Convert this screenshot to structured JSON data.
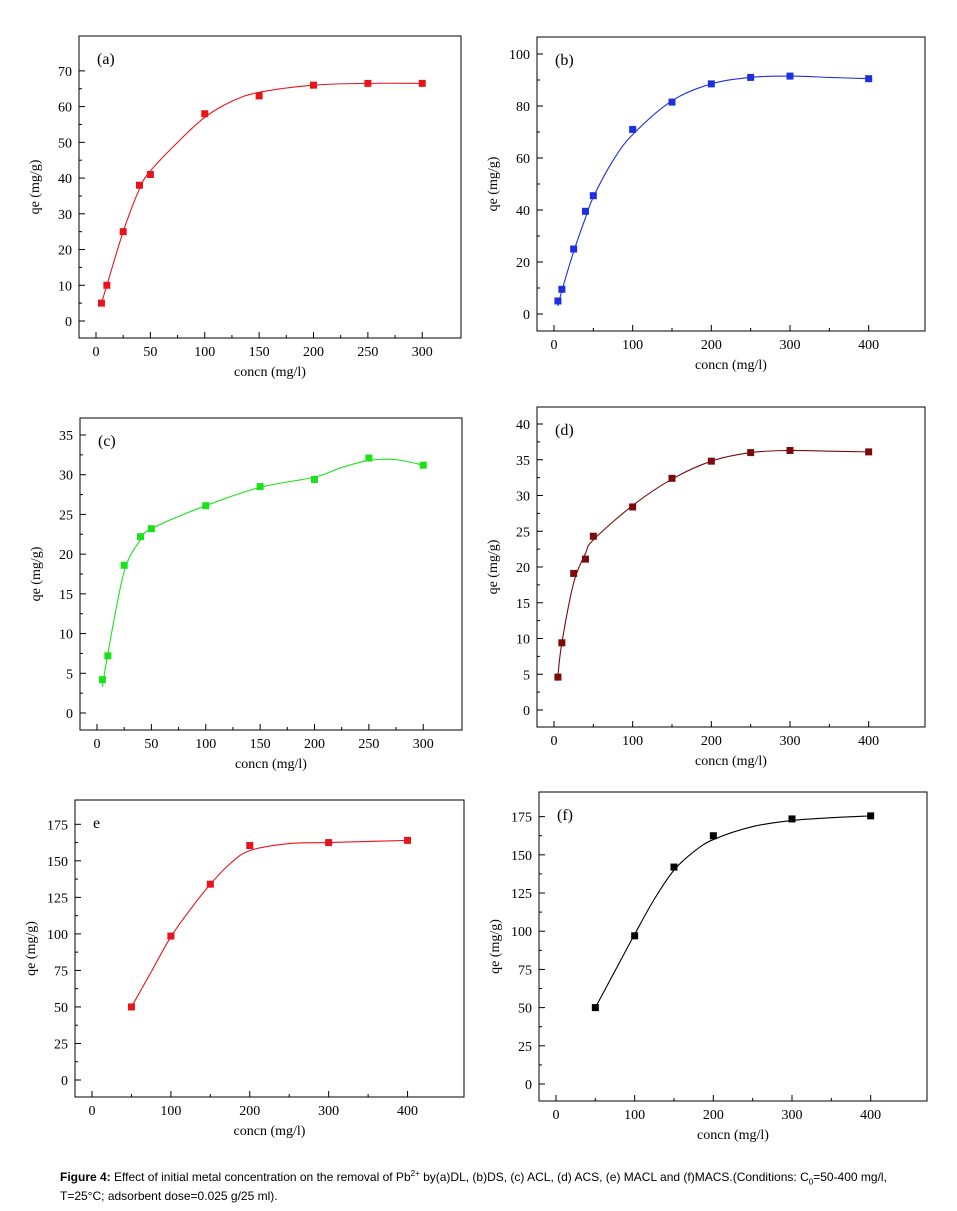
{
  "chart_data": [
    {
      "type": "scatter",
      "panel_label": "(a)",
      "xlabel": "concn (mg/l)",
      "ylabel": "qe (mg/g)",
      "xlim": [
        0,
        320
      ],
      "ylim": [
        0,
        75
      ],
      "xticks": [
        0,
        50,
        100,
        150,
        200,
        250,
        300
      ],
      "yticks": [
        0,
        10,
        20,
        30,
        40,
        50,
        60,
        70
      ],
      "color": "#e8141b",
      "points": [
        [
          5,
          5
        ],
        [
          10,
          10
        ],
        [
          25,
          25
        ],
        [
          40,
          38
        ],
        [
          50,
          41
        ],
        [
          100,
          58
        ],
        [
          150,
          63
        ],
        [
          200,
          66
        ],
        [
          250,
          66.5
        ],
        [
          300,
          66.5
        ]
      ],
      "curve": [
        [
          5,
          5
        ],
        [
          10,
          10
        ],
        [
          25,
          25
        ],
        [
          40,
          37
        ],
        [
          50,
          42
        ],
        [
          75,
          50
        ],
        [
          100,
          57
        ],
        [
          125,
          61.5
        ],
        [
          150,
          64
        ],
        [
          200,
          66
        ],
        [
          250,
          66.5
        ],
        [
          300,
          66.5
        ]
      ]
    },
    {
      "type": "scatter",
      "panel_label": "(b)",
      "xlabel": "concn (mg/l)",
      "ylabel": "qe (mg/g)",
      "xlim": [
        0,
        450
      ],
      "ylim": [
        0,
        100
      ],
      "xticks": [
        0,
        100,
        200,
        300,
        400
      ],
      "yticks": [
        0,
        20,
        40,
        60,
        80,
        100
      ],
      "color": "#1d2fe0",
      "points": [
        [
          5,
          5
        ],
        [
          10,
          9.5
        ],
        [
          25,
          25
        ],
        [
          40,
          39.5
        ],
        [
          50,
          45.5
        ],
        [
          100,
          71
        ],
        [
          150,
          81.5
        ],
        [
          200,
          88.5
        ],
        [
          250,
          91
        ],
        [
          300,
          91.5
        ],
        [
          400,
          90.5
        ]
      ],
      "curve": [
        [
          5,
          3
        ],
        [
          10,
          9
        ],
        [
          25,
          24
        ],
        [
          40,
          37
        ],
        [
          50,
          45
        ],
        [
          75,
          59
        ],
        [
          100,
          69
        ],
        [
          150,
          82
        ],
        [
          200,
          88.5
        ],
        [
          250,
          91
        ],
        [
          300,
          91.5
        ],
        [
          350,
          91
        ],
        [
          400,
          90.5
        ]
      ]
    },
    {
      "type": "scatter",
      "panel_label": "(c)",
      "xlabel": "concn (mg/l)",
      "ylabel": "qe (mg/g)",
      "xlim": [
        0,
        320
      ],
      "ylim": [
        0,
        35
      ],
      "xticks": [
        0,
        50,
        100,
        150,
        200,
        250,
        300
      ],
      "yticks": [
        0,
        5,
        10,
        15,
        20,
        25,
        30,
        35
      ],
      "color": "#19e21a",
      "points": [
        [
          5,
          4.2
        ],
        [
          10,
          7.2
        ],
        [
          25,
          18.6
        ],
        [
          40,
          22.2
        ],
        [
          50,
          23.2
        ],
        [
          100,
          26.1
        ],
        [
          150,
          28.5
        ],
        [
          200,
          29.4
        ],
        [
          250,
          32.1
        ],
        [
          300,
          31.2
        ]
      ],
      "curve": [
        [
          5,
          3.3
        ],
        [
          10,
          7.5
        ],
        [
          25,
          17.8
        ],
        [
          40,
          21.8
        ],
        [
          50,
          23.2
        ],
        [
          100,
          26.1
        ],
        [
          150,
          28.4
        ],
        [
          200,
          29.7
        ],
        [
          225,
          30.9
        ],
        [
          250,
          31.8
        ],
        [
          275,
          31.9
        ],
        [
          300,
          31.2
        ]
      ]
    },
    {
      "type": "scatter",
      "panel_label": "(d)",
      "xlabel": "concn (mg/l)",
      "ylabel": "qe (mg/g)",
      "xlim": [
        0,
        450
      ],
      "ylim": [
        0,
        40
      ],
      "xticks": [
        0,
        100,
        200,
        300,
        400
      ],
      "yticks": [
        0,
        5,
        10,
        15,
        20,
        25,
        30,
        35,
        40
      ],
      "color": "#7b0a0a",
      "points": [
        [
          5,
          4.6
        ],
        [
          10,
          9.4
        ],
        [
          25,
          19.1
        ],
        [
          40,
          21.1
        ],
        [
          50,
          24.3
        ],
        [
          100,
          28.4
        ],
        [
          150,
          32.4
        ],
        [
          200,
          34.8
        ],
        [
          250,
          36
        ],
        [
          300,
          36.3
        ],
        [
          400,
          36.1
        ]
      ],
      "curve": [
        [
          5,
          4.8
        ],
        [
          10,
          9.4
        ],
        [
          25,
          17.8
        ],
        [
          40,
          21.9
        ],
        [
          50,
          23.8
        ],
        [
          100,
          28.6
        ],
        [
          150,
          32.3
        ],
        [
          200,
          34.8
        ],
        [
          250,
          36
        ],
        [
          300,
          36.3
        ],
        [
          350,
          36.2
        ],
        [
          400,
          36.1
        ]
      ]
    },
    {
      "type": "scatter",
      "panel_label": "e",
      "xlabel": "concn (mg/l)",
      "ylabel": "qe (mg/g)",
      "xlim": [
        0,
        450
      ],
      "ylim": [
        0,
        180
      ],
      "xticks": [
        0,
        100,
        200,
        300,
        400
      ],
      "yticks": [
        0,
        25,
        50,
        75,
        100,
        125,
        150,
        175
      ],
      "color": "#e8141b",
      "points": [
        [
          50,
          50
        ],
        [
          100,
          98.5
        ],
        [
          150,
          134
        ],
        [
          200,
          160.5
        ],
        [
          300,
          162.5
        ],
        [
          400,
          164
        ]
      ],
      "curve": [
        [
          50,
          50
        ],
        [
          75,
          74
        ],
        [
          100,
          98
        ],
        [
          125,
          117
        ],
        [
          150,
          134
        ],
        [
          175,
          148
        ],
        [
          200,
          157
        ],
        [
          250,
          161.8
        ],
        [
          300,
          162.5
        ],
        [
          350,
          163.3
        ],
        [
          400,
          164
        ]
      ]
    },
    {
      "type": "scatter",
      "panel_label": "(f)",
      "xlabel": "concn (mg/l)",
      "ylabel": "qe (mg/g)",
      "xlim": [
        0,
        450
      ],
      "ylim": [
        0,
        180
      ],
      "xticks": [
        0,
        100,
        200,
        300,
        400
      ],
      "yticks": [
        0,
        25,
        50,
        75,
        100,
        125,
        150,
        175
      ],
      "color": "#000000",
      "points": [
        [
          50,
          50
        ],
        [
          100,
          97
        ],
        [
          150,
          142
        ],
        [
          200,
          162.5
        ],
        [
          300,
          173.5
        ],
        [
          400,
          175.5
        ]
      ],
      "curve": [
        [
          50,
          50
        ],
        [
          75,
          74
        ],
        [
          100,
          98
        ],
        [
          125,
          121
        ],
        [
          150,
          140
        ],
        [
          175,
          152
        ],
        [
          200,
          160
        ],
        [
          250,
          168.5
        ],
        [
          300,
          172.5
        ],
        [
          350,
          174.3
        ],
        [
          400,
          175.5
        ]
      ]
    }
  ],
  "caption": {
    "label": "Figure 4:",
    "text_part1": " Effect of initial metal concentration on the removal of Pb",
    "pb_superscript": "2+",
    "text_part2": " by(a)DL, (b)DS, (c) ACL, (d) ACS, (e) MACL and (f)MACS.(Conditions: C",
    "c0_subscript": "0",
    "text_part3": "=50-400 mg/l, T=25°C; adsorbent dose=0.025 g/25 ml)."
  }
}
